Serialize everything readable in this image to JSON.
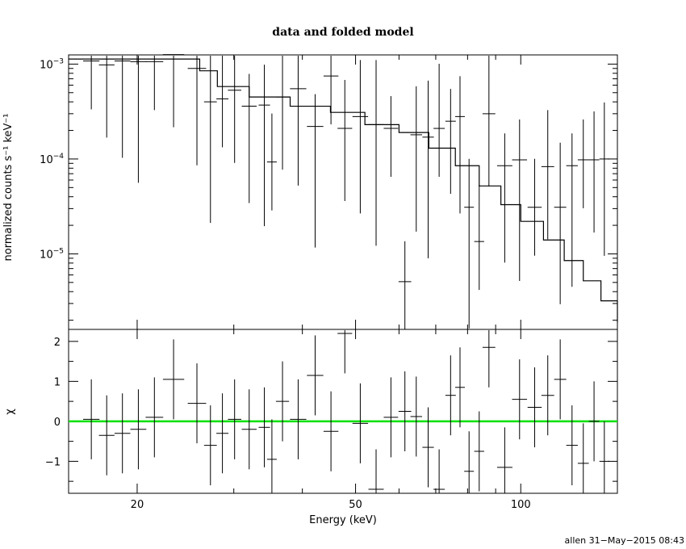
{
  "chart_data": [
    {
      "type": "line",
      "title": "data and folded model",
      "ylabel": "normalized counts s⁻¹ keV⁻¹",
      "yscale": "log",
      "xscale": "log",
      "xlim": [
        15,
        150
      ],
      "ylim": [
        1.6e-06,
        0.00125
      ],
      "ytick_labels": [
        {
          "base": "10",
          "exp": "−3",
          "value": 0.001
        },
        {
          "base": "10",
          "exp": "−4",
          "value": 0.0001
        },
        {
          "base": "10",
          "exp": "−5",
          "value": 1e-05
        }
      ],
      "series": [
        {
          "style": "data-crosses",
          "points": [
            [
              16.5,
              0.00108
            ],
            [
              17.6,
              0.00098
            ],
            [
              18.8,
              0.00108
            ],
            [
              20.1,
              0.00106
            ],
            [
              21.5,
              0.00106
            ],
            [
              23.3,
              0.00126
            ],
            [
              25.7,
              0.0009
            ],
            [
              27.2,
              0.0004
            ],
            [
              28.6,
              0.00043
            ],
            [
              30.1,
              0.00053
            ],
            [
              32.0,
              0.00036
            ],
            [
              34.1,
              0.00037
            ],
            [
              35.2,
              9.3e-05
            ],
            [
              36.8,
              0.00045
            ],
            [
              39.3,
              0.00055
            ],
            [
              42.2,
              0.00022
            ],
            [
              45.1,
              0.00075
            ],
            [
              47.8,
              0.00021
            ],
            [
              51.0,
              0.00028
            ],
            [
              54.5,
              0.00023
            ],
            [
              58.0,
              0.00021
            ],
            [
              61.5,
              5.1e-06
            ],
            [
              64.5,
              0.00018
            ],
            [
              67.8,
              0.00017
            ],
            [
              71.0,
              0.00021
            ],
            [
              74.5,
              0.00025
            ],
            [
              77.5,
              0.00028
            ],
            [
              80.5,
              3.1e-05
            ],
            [
              84.0,
              1.35e-05
            ],
            [
              87.5,
              0.0003
            ],
            [
              93.5,
              8.5e-05
            ],
            [
              99.5,
              9.8e-05
            ],
            [
              106,
              3.1e-05
            ],
            [
              112,
              8.3e-05
            ],
            [
              118,
              3.1e-05
            ],
            [
              124,
              8.5e-05
            ],
            [
              130,
              9.8e-05
            ],
            [
              136,
              9.8e-05
            ],
            [
              142,
              0.0001
            ]
          ]
        },
        {
          "style": "model-step",
          "name": "",
          "points": [
            [
              15,
              0.00113
            ],
            [
              26,
              0.00085
            ],
            [
              28,
              0.00058
            ],
            [
              32,
              0.00045
            ],
            [
              38,
              0.00036
            ],
            [
              45,
              0.00031
            ],
            [
              52,
              0.00023
            ],
            [
              60,
              0.00019
            ],
            [
              68,
              0.00013
            ],
            [
              76,
              8.5e-05
            ],
            [
              84,
              5.2e-05
            ],
            [
              92,
              3.3e-05
            ],
            [
              100,
              2.2e-05
            ],
            [
              110,
              1.4e-05
            ],
            [
              120,
              8.5e-06
            ],
            [
              130,
              5.2e-06
            ],
            [
              140,
              3.2e-06
            ],
            [
              150,
              1.9e-06
            ]
          ]
        }
      ]
    },
    {
      "type": "scatter",
      "xlabel": "Energy (keV)",
      "ylabel": "χ",
      "xscale": "log",
      "xlim": [
        15,
        150
      ],
      "ylim": [
        -1.8,
        2.3
      ],
      "yticks": [
        -1,
        0,
        1,
        2
      ],
      "ytick_labels": [
        "−1",
        "0",
        "1",
        "2"
      ],
      "xticks": [
        20,
        50,
        100
      ],
      "xtick_labels": [
        "20",
        "50",
        "100"
      ],
      "reference_line": {
        "y": 0,
        "color": "#00e000"
      },
      "points": [
        [
          16.5,
          0.05
        ],
        [
          17.6,
          -0.35
        ],
        [
          18.8,
          -0.3
        ],
        [
          20.1,
          -0.2
        ],
        [
          21.5,
          0.1
        ],
        [
          23.3,
          1.05
        ],
        [
          25.7,
          0.45
        ],
        [
          27.2,
          -0.6
        ],
        [
          28.6,
          -0.3
        ],
        [
          30.1,
          0.05
        ],
        [
          32.0,
          -0.2
        ],
        [
          34.1,
          -0.15
        ],
        [
          35.2,
          -0.95
        ],
        [
          36.8,
          0.5
        ],
        [
          39.3,
          0.05
        ],
        [
          42.2,
          1.15
        ],
        [
          45.1,
          -0.25
        ],
        [
          47.8,
          2.2
        ],
        [
          51.0,
          -0.05
        ],
        [
          54.5,
          -1.7
        ],
        [
          58.0,
          0.1
        ],
        [
          61.5,
          0.25
        ],
        [
          64.5,
          0.12
        ],
        [
          67.8,
          -0.65
        ],
        [
          71.0,
          -1.7
        ],
        [
          74.5,
          0.65
        ],
        [
          77.5,
          0.85
        ],
        [
          80.5,
          -1.25
        ],
        [
          84.0,
          -0.75
        ],
        [
          87.5,
          1.85
        ],
        [
          93.5,
          -1.15
        ],
        [
          99.5,
          0.55
        ],
        [
          106,
          0.35
        ],
        [
          112,
          0.65
        ],
        [
          118,
          1.05
        ],
        [
          124,
          -0.6
        ],
        [
          130,
          -1.05
        ],
        [
          136,
          0.0
        ],
        [
          142,
          -1.0
        ]
      ]
    }
  ],
  "footer": "allen 31−May−2015 08:43"
}
